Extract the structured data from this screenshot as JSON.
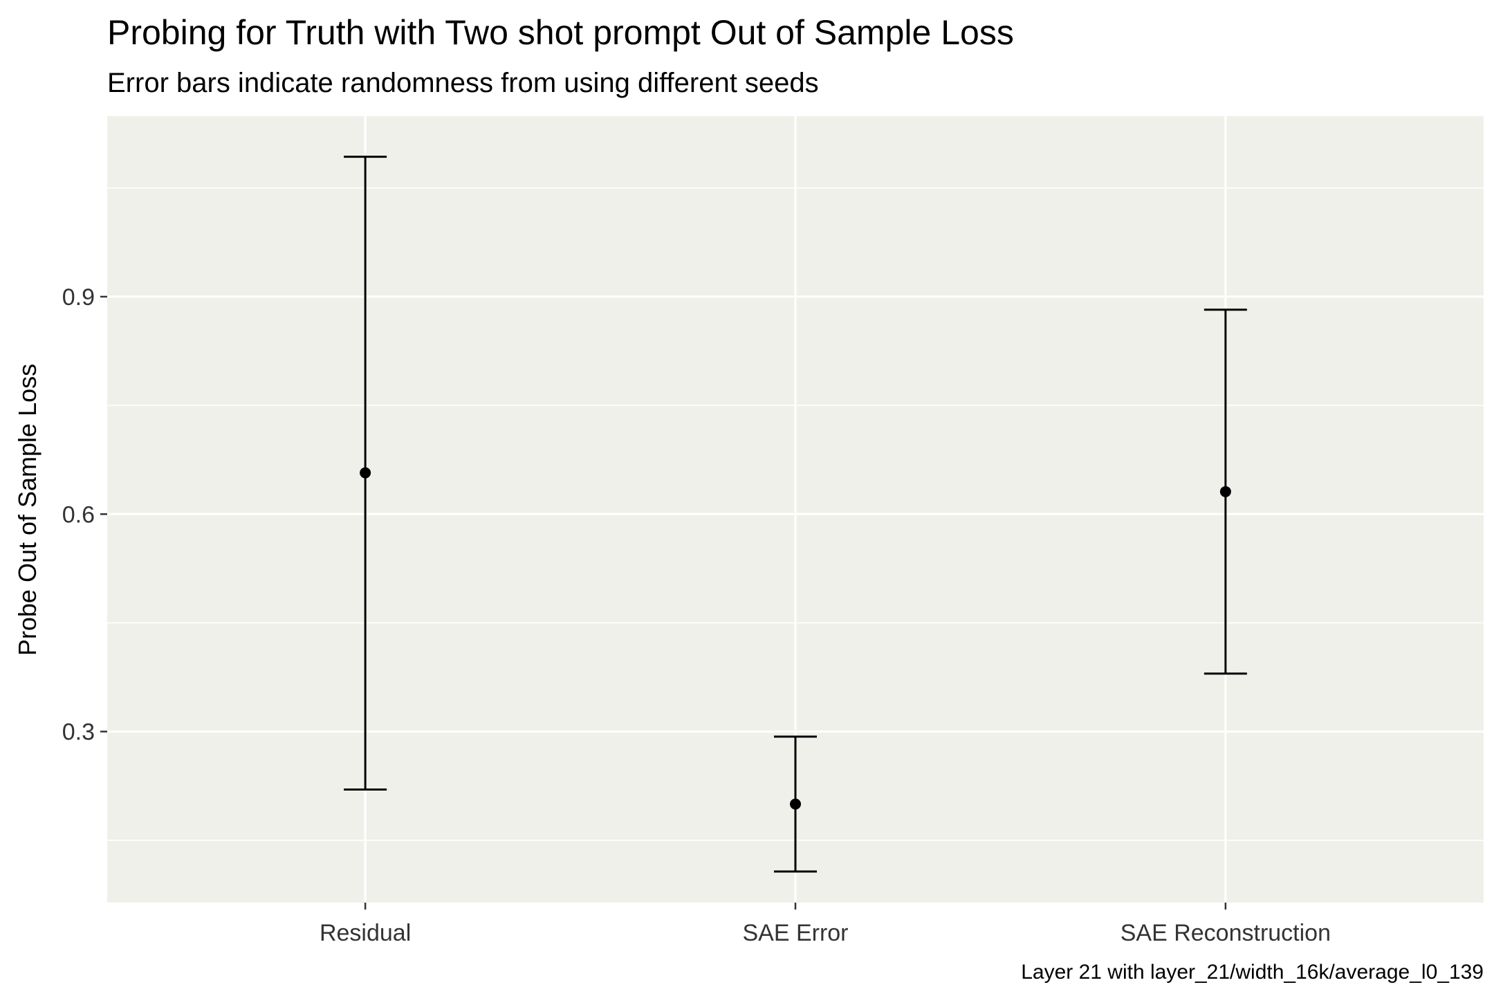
{
  "chart_data": {
    "type": "errorbar",
    "title": "Probing for Truth with Two shot prompt Out of Sample Loss",
    "subtitle": "Error bars indicate randomness from using different seeds",
    "caption": "Layer 21 with layer_21/width_16k/average_l0_139",
    "xlabel": "",
    "ylabel": "Probe Out of Sample Loss",
    "categories": [
      "Residual",
      "SAE Error",
      "SAE Reconstruction"
    ],
    "means": [
      0.657,
      0.2,
      0.631
    ],
    "lower": [
      0.22,
      0.107,
      0.38
    ],
    "upper": [
      1.093,
      0.293,
      0.882
    ],
    "yticks": [
      0.3,
      0.6,
      0.9
    ],
    "ytick_labels": [
      "0.3",
      "0.6",
      "0.9"
    ],
    "ylim": [
      0.064,
      1.149
    ],
    "grid": true,
    "panel_color": "#F0F0EA",
    "grid_color": "#FFFFFF",
    "mark_color": "#000000"
  }
}
